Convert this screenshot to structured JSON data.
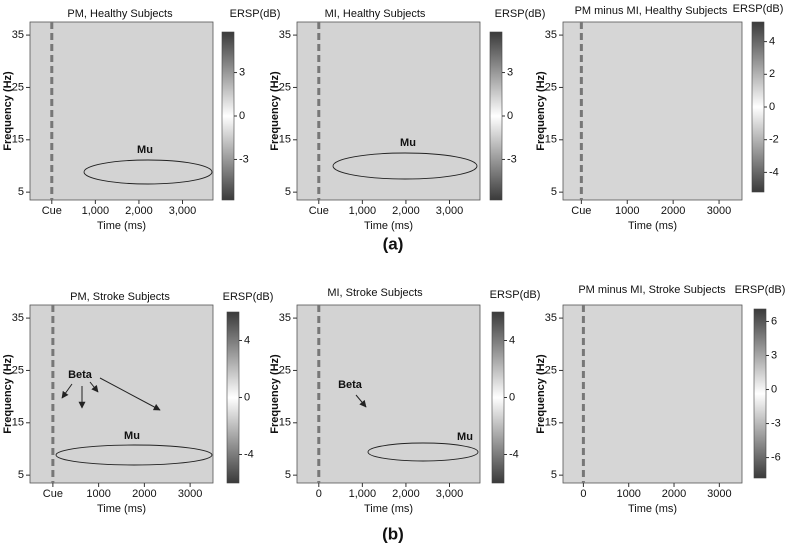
{
  "panel_labels": [
    "(a)",
    "(b)"
  ],
  "chart_data": [
    {
      "type": "heatmap",
      "title": "PM, Healthy Subjects",
      "x_label": "Time (ms)",
      "y_label": "Frequency (Hz)",
      "xlim": [
        -500,
        3700
      ],
      "xticks": [
        {
          "value": 0,
          "label": "Cue"
        },
        {
          "value": 1000,
          "label": "1,000"
        },
        {
          "value": 2000,
          "label": "2,000"
        },
        {
          "value": 3000,
          "label": "3,000"
        }
      ],
      "ylim": [
        3.5,
        37.5
      ],
      "yticks": [
        5,
        15,
        25,
        35
      ],
      "color": "#d3d3d3",
      "colorbar_label": "ERSP(dB)",
      "clim": [
        -5.8,
        5.8
      ],
      "cticks": [
        -3,
        0,
        3
      ],
      "colormap": [
        "#3a3a3a",
        "#ffffff",
        "#3a3a3a"
      ],
      "annotations": [
        "Mu"
      ]
    },
    {
      "type": "heatmap",
      "title": "MI, Healthy Subjects",
      "x_label": "Time (ms)",
      "y_label": "Frequency (Hz)",
      "xlim": [
        -500,
        3700
      ],
      "xticks": [
        {
          "value": 0,
          "label": "Cue"
        },
        {
          "value": 1000,
          "label": "1,000"
        },
        {
          "value": 2000,
          "label": "2,000"
        },
        {
          "value": 3000,
          "label": "3,000"
        }
      ],
      "ylim": [
        3.5,
        37.5
      ],
      "yticks": [
        5,
        15,
        25,
        35
      ],
      "color": "#d3d3d3",
      "colorbar_label": "ERSP(dB)",
      "clim": [
        -5.8,
        5.8
      ],
      "cticks": [
        -3,
        0,
        3
      ],
      "colormap": [
        "#3a3a3a",
        "#ffffff",
        "#3a3a3a"
      ],
      "annotations": [
        "Mu"
      ]
    },
    {
      "type": "heatmap",
      "title": "PM minus MI, Healthy Subjects",
      "x_label": "Time (ms)",
      "y_label": "Frequency (Hz)",
      "xlim": [
        -400,
        3500
      ],
      "xticks": [
        {
          "value": 0,
          "label": "Cue"
        },
        1000,
        2000,
        3000
      ],
      "ylim": [
        3.5,
        37.5
      ],
      "yticks": [
        5,
        15,
        25,
        35
      ],
      "color": "#d6d6d6",
      "colorbar_label": "ERSP(dB)",
      "clim": [
        -5.2,
        5.2
      ],
      "cticks": [
        -4,
        -2,
        0,
        2,
        4
      ],
      "colormap": [
        "#3a3a3a",
        "#ffffff",
        "#3a3a3a"
      ],
      "annotations": []
    },
    {
      "type": "heatmap",
      "title": "PM, Stroke Subjects",
      "x_label": "Time (ms)",
      "y_label": "Frequency (Hz)",
      "xlim": [
        -500,
        3500
      ],
      "xticks": [
        {
          "value": 0,
          "label": "Cue"
        },
        1000,
        2000,
        3000
      ],
      "ylim": [
        3.5,
        37.5
      ],
      "yticks": [
        5,
        15,
        25,
        35
      ],
      "color": "#d3d3d3",
      "colorbar_label": "ERSP(dB)",
      "clim": [
        -6,
        6
      ],
      "cticks": [
        -4,
        0,
        4
      ],
      "colormap": [
        "#3a3a3a",
        "#ffffff",
        "#3a3a3a"
      ],
      "annotations": [
        "Beta",
        "Mu"
      ]
    },
    {
      "type": "heatmap",
      "title": "MI, Stroke Subjects",
      "x_label": "Time (ms)",
      "y_label": "Frequency (Hz)",
      "xlim": [
        -500,
        3700
      ],
      "xticks": [
        0,
        {
          "value": 1000,
          "label": "1,000"
        },
        {
          "value": 2000,
          "label": "2,000"
        },
        {
          "value": 3000,
          "label": "3,000"
        }
      ],
      "ylim": [
        3.5,
        37.5
      ],
      "yticks": [
        5,
        15,
        25,
        35
      ],
      "color": "#d3d3d3",
      "colorbar_label": "ERSP(dB)",
      "clim": [
        -6,
        6
      ],
      "cticks": [
        -4,
        0,
        4
      ],
      "colormap": [
        "#3a3a3a",
        "#ffffff",
        "#3a3a3a"
      ],
      "annotations": [
        "Beta",
        "Mu"
      ]
    },
    {
      "type": "heatmap",
      "title": "PM minus MI, Stroke Subjects",
      "x_label": "Time (ms)",
      "y_label": "Frequency (Hz)",
      "xlim": [
        -450,
        3500
      ],
      "xticks": [
        0,
        1000,
        2000,
        3000
      ],
      "ylim": [
        3.5,
        37.5
      ],
      "yticks": [
        5,
        15,
        25,
        35
      ],
      "color": "#d6d6d6",
      "colorbar_label": "ERSP(dB)",
      "clim": [
        -7.8,
        7.1
      ],
      "cticks": [
        -6,
        -3,
        0,
        3,
        6
      ],
      "colormap": [
        "#3a3a3a",
        "#ffffff",
        "#3a3a3a"
      ],
      "annotations": []
    }
  ]
}
